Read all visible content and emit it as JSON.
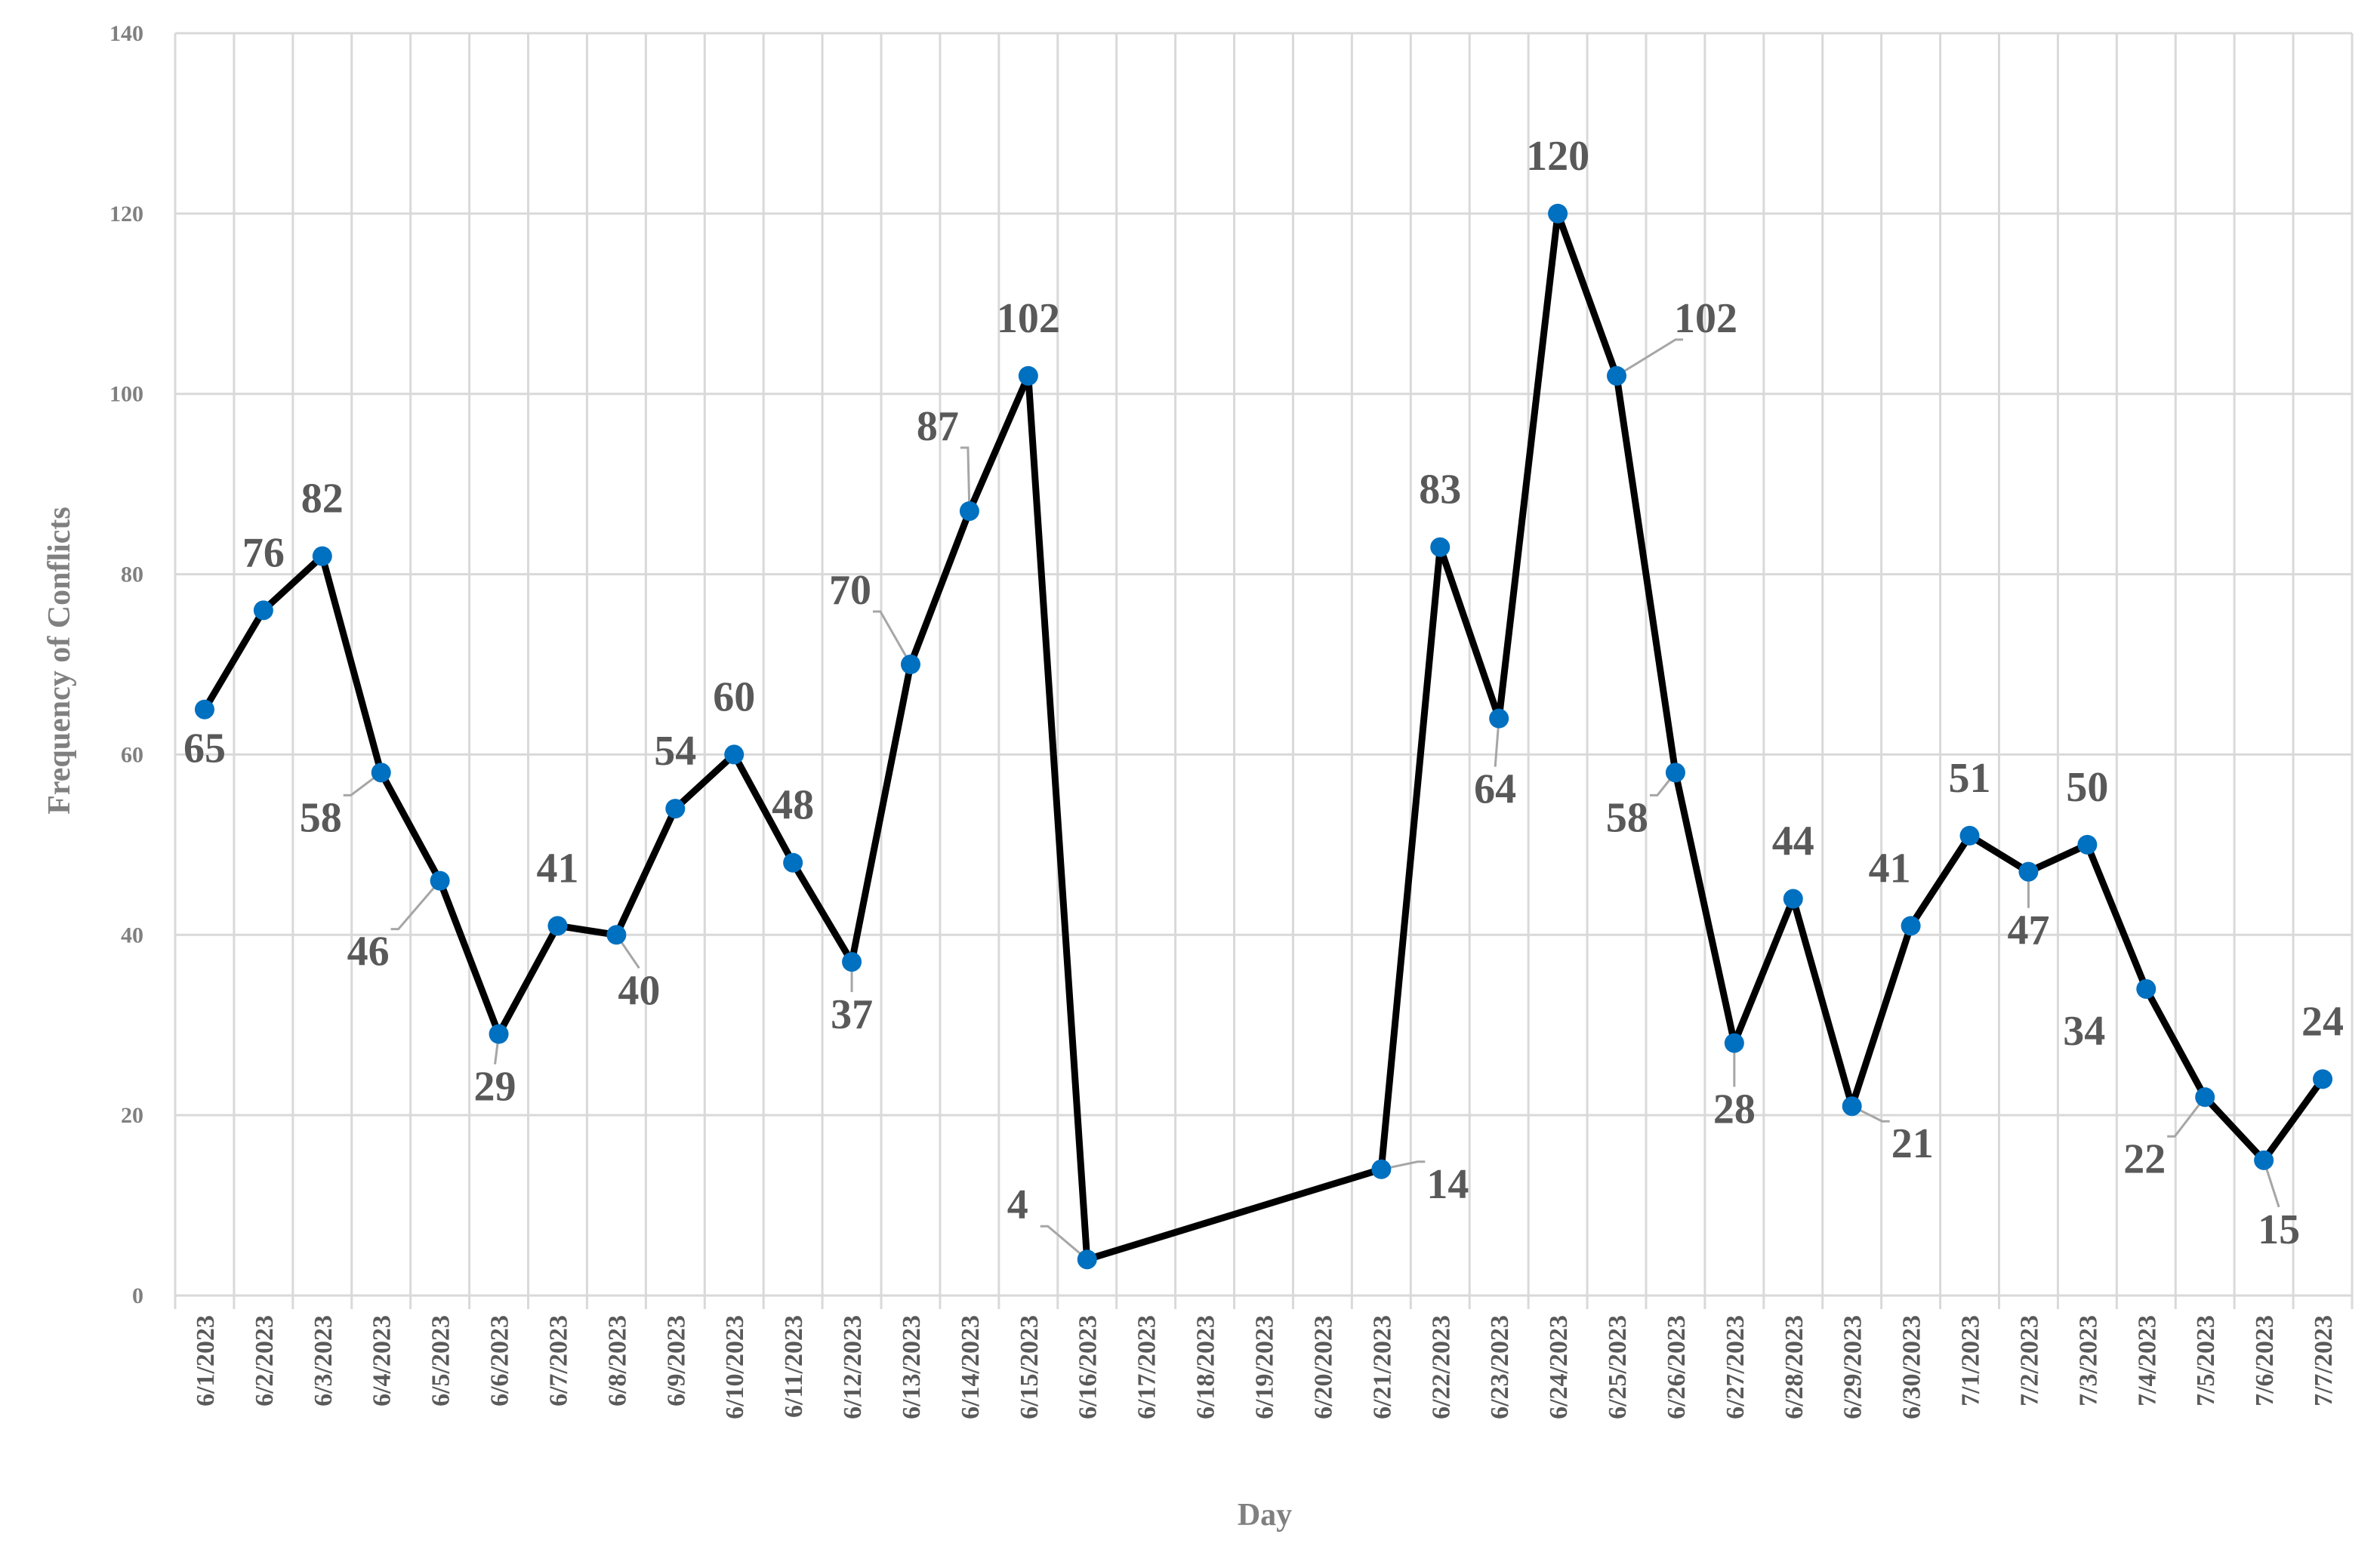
{
  "chart_data": {
    "type": "line",
    "xlabel": "Day",
    "ylabel": "Frequency of Conflicts",
    "ylim": [
      0,
      140
    ],
    "yticks": [
      0,
      20,
      40,
      60,
      80,
      100,
      120,
      140
    ],
    "grid": true,
    "legend": "none",
    "categories": [
      "6/1/2023",
      "6/2/2023",
      "6/3/2023",
      "6/4/2023",
      "6/5/2023",
      "6/6/2023",
      "6/7/2023",
      "6/8/2023",
      "6/9/2023",
      "6/10/2023",
      "6/11/2023",
      "6/12/2023",
      "6/13/2023",
      "6/14/2023",
      "6/15/2023",
      "6/16/2023",
      "6/17/2023",
      "6/18/2023",
      "6/19/2023",
      "6/20/2023",
      "6/21/2023",
      "6/22/2023",
      "6/23/2023",
      "6/24/2023",
      "6/25/2023",
      "6/26/2023",
      "6/27/2023",
      "6/28/2023",
      "6/29/2023",
      "6/30/2023",
      "7/1/2023",
      "7/2/2023",
      "7/3/2023",
      "7/4/2023",
      "7/5/2023",
      "7/6/2023",
      "7/7/2023"
    ],
    "series": [
      {
        "values": [
          65,
          76,
          82,
          58,
          46,
          29,
          41,
          40,
          54,
          60,
          48,
          37,
          70,
          87,
          102,
          4,
          null,
          null,
          null,
          null,
          14,
          83,
          64,
          120,
          102,
          58,
          28,
          44,
          21,
          41,
          51,
          47,
          50,
          34,
          22,
          15,
          24
        ],
        "line_color": "#000000",
        "marker_color": "#0070c0"
      }
    ],
    "label_color": "#595959"
  }
}
